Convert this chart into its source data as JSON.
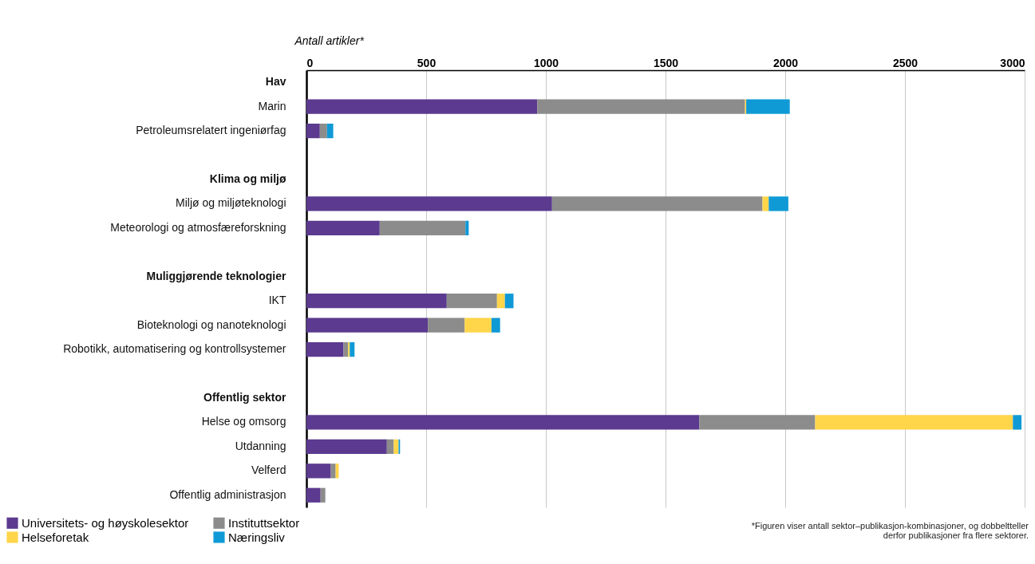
{
  "chart_data": {
    "type": "bar",
    "orientation": "horizontal",
    "stacked": true,
    "xlabel": "Antall artikler*",
    "xlim": [
      0,
      3000
    ],
    "xticks": [
      0,
      500,
      1000,
      1500,
      2000,
      2500,
      3000
    ],
    "grid": "x",
    "legend": "bottom left",
    "categories": [
      "Hav",
      "Marin",
      "Petroleumsrelatert ingeniørfag",
      null,
      "Klima og miljø",
      "Miljø og miljøteknologi",
      "Meteorologi og atmosfæreforskning",
      null,
      "Muliggjørende teknologier",
      "IKT",
      "Bioteknologi og nanoteknologi",
      "Robotikk, automatisering og kontrollsystemer",
      null,
      "Offentlig sektor",
      "Helse og omsorg",
      "Utdanning",
      "Velferd",
      "Offentlig administrasjon"
    ],
    "series": [
      {
        "name": "Universitets- og høyskolesektor",
        "color": "#5b3a8f",
        "values": [
          null,
          964,
          56,
          null,
          null,
          1026,
          306,
          null,
          null,
          586,
          507,
          155,
          null,
          null,
          1641,
          336,
          102,
          59
        ]
      },
      {
        "name": "Instituttsektor",
        "color": "#8c8c8c",
        "values": [
          null,
          868,
          30,
          null,
          null,
          879,
          358,
          null,
          null,
          210,
          154,
          19,
          null,
          null,
          484,
          29,
          20,
          20
        ]
      },
      {
        "name": "Helseforetak",
        "color": "#ffd54a",
        "values": [
          null,
          5,
          null,
          null,
          null,
          26,
          null,
          null,
          null,
          33,
          112,
          7,
          null,
          null,
          826,
          20,
          13,
          null
        ]
      },
      {
        "name": "Næringsliv",
        "color": "#0f9ad6",
        "values": [
          null,
          182,
          26,
          null,
          null,
          82,
          14,
          null,
          null,
          36,
          36,
          20,
          null,
          null,
          36,
          6,
          null,
          null
        ]
      }
    ],
    "annotations": [
      "*Figuren viser antall sektor–publikasjon-kombinasjoner, og dobbeltteller derfor publikasjoner fra flere sektorer."
    ]
  }
}
